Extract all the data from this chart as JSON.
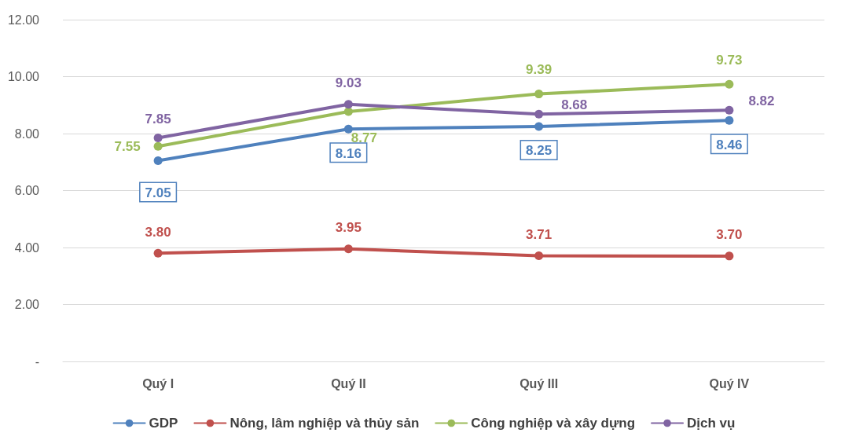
{
  "chart_data": {
    "type": "line",
    "categories": [
      "Quý I",
      "Quý II",
      "Quý III",
      "Quý IV"
    ],
    "series": [
      {
        "name": "GDP",
        "color": "#4f81bd",
        "values": [
          7.05,
          8.16,
          8.25,
          8.46
        ],
        "value_labels": [
          "7.05",
          "8.16",
          "8.25",
          "8.46"
        ]
      },
      {
        "name": "Nông, lâm nghiệp và thủy sản",
        "color": "#c0504d",
        "values": [
          3.8,
          3.95,
          3.71,
          3.7
        ],
        "value_labels": [
          "3.80",
          "3.95",
          "3.71",
          "3.70"
        ]
      },
      {
        "name": "Công nghiệp và xây dựng",
        "color": "#9bbb59",
        "values": [
          7.55,
          8.77,
          9.39,
          9.73
        ],
        "value_labels": [
          "7.55",
          "8.77",
          "9.39",
          "9.73"
        ]
      },
      {
        "name": "Dịch vụ",
        "color": "#8064a2",
        "values": [
          7.85,
          9.03,
          8.68,
          8.82
        ],
        "value_labels": [
          "7.85",
          "9.03",
          "8.68",
          "8.82"
        ]
      }
    ],
    "ylim": [
      0,
      12
    ],
    "yticks": [
      {
        "value": 0,
        "label": "-"
      },
      {
        "value": 2,
        "label": "2.00"
      },
      {
        "value": 4,
        "label": "4.00"
      },
      {
        "value": 6,
        "label": "6.00"
      },
      {
        "value": 8,
        "label": "8.00"
      },
      {
        "value": 10,
        "label": "10.00"
      },
      {
        "value": 12,
        "label": "12.00"
      }
    ],
    "grid": "y",
    "legend": "bottom",
    "marker": "circle",
    "line_style": "solid"
  }
}
